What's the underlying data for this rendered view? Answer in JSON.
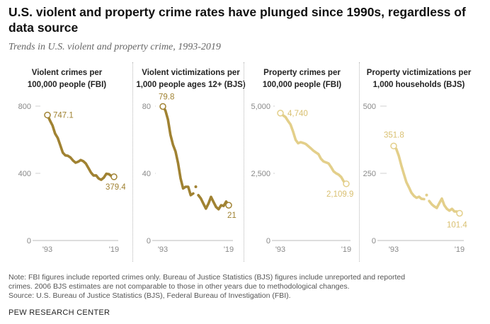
{
  "title": "U.S. violent and property crime rates have plunged since 1990s, regardless of data source",
  "subtitle": "Trends in U.S. violent and property crime, 1993-2019",
  "note": {
    "line1": "Note: FBI figures include reported crimes only. Bureau of Justice Statistics (BJS) figures include unreported and reported",
    "line2": "crimes. 2006 BJS estimates are not comparable to those in other years due to methodological changes.",
    "line3": "Source: U.S. Bureau of Justice Statistics (BJS), Federal Bureau of Investigation (FBI)."
  },
  "credit": "PEW RESEARCH CENTER",
  "colors": {
    "dark": "#a08232",
    "light": "#e3cf8a",
    "light_label": "#d9c071",
    "axis": "#bbbbbb",
    "tick": "#888888"
  },
  "chart_data": [
    {
      "type": "line",
      "title_line1": "Violent crimes per",
      "title_line2": "100,000 people (FBI)",
      "color": "dark",
      "x": [
        1993,
        1994,
        1995,
        1996,
        1997,
        1998,
        1999,
        2000,
        2001,
        2002,
        2003,
        2004,
        2005,
        2006,
        2007,
        2008,
        2009,
        2010,
        2011,
        2012,
        2013,
        2014,
        2015,
        2016,
        2017,
        2018,
        2019
      ],
      "values": [
        747.1,
        713.6,
        684.5,
        636.6,
        611.0,
        567.6,
        523.0,
        506.5,
        504.5,
        494.4,
        475.8,
        463.2,
        469.0,
        479.3,
        471.8,
        458.6,
        431.9,
        404.5,
        387.1,
        387.8,
        369.1,
        361.6,
        373.7,
        397.5,
        394.9,
        383.4,
        379.4
      ],
      "ylim": [
        0,
        800
      ],
      "yticks": [
        0,
        400,
        800
      ],
      "ytick_labels": [
        "0",
        "400",
        "800"
      ],
      "xtick_labels": [
        "'93",
        "'19"
      ],
      "start_label": "747.1",
      "end_label": "379.4"
    },
    {
      "type": "line",
      "title_line1": "Violent victimizations per",
      "title_line2": "1,000 people ages 12+ (BJS)",
      "color": "dark",
      "x": [
        1993,
        1994,
        1995,
        1996,
        1997,
        1998,
        1999,
        2000,
        2001,
        2002,
        2003,
        2004,
        2005,
        2006,
        2007,
        2008,
        2009,
        2010,
        2011,
        2012,
        2013,
        2014,
        2015,
        2016,
        2017,
        2018,
        2019
      ],
      "values": [
        79.8,
        77.4,
        72.0,
        63.0,
        57.0,
        53.0,
        46.0,
        37.0,
        31.0,
        32.0,
        32.0,
        27.0,
        28.0,
        32.0,
        27.0,
        25.0,
        22.0,
        19.0,
        22.0,
        26.0,
        23.0,
        20.0,
        18.6,
        21.0,
        20.6,
        23.2,
        21.0
      ],
      "break_index": 13,
      "ylim": [
        0,
        80
      ],
      "yticks": [
        0,
        40,
        80
      ],
      "ytick_labels": [
        "0",
        "40",
        "80"
      ],
      "xtick_labels": [
        "'93",
        "'19"
      ],
      "start_label": "79.8",
      "end_label": "21"
    },
    {
      "type": "line",
      "title_line1": "Property crimes per",
      "title_line2": "100,000 people (FBI)",
      "color": "light",
      "x": [
        1993,
        1994,
        1995,
        1996,
        1997,
        1998,
        1999,
        2000,
        2001,
        2002,
        2003,
        2004,
        2005,
        2006,
        2007,
        2008,
        2009,
        2010,
        2011,
        2012,
        2013,
        2014,
        2015,
        2016,
        2017,
        2018,
        2019
      ],
      "values": [
        4740,
        4660,
        4591,
        4451,
        4316,
        4052,
        3744,
        3618,
        3658,
        3630,
        3591,
        3514,
        3432,
        3346,
        3276,
        3215,
        3041,
        2946,
        2905,
        2868,
        2733,
        2574,
        2500,
        2451,
        2362,
        2200,
        2109.9
      ],
      "ylim": [
        0,
        5000
      ],
      "yticks": [
        0,
        2500,
        5000
      ],
      "ytick_labels": [
        "0",
        "2,500",
        "5,000"
      ],
      "xtick_labels": [
        "'93",
        "'19"
      ],
      "start_label": "4,740",
      "end_label": "2,109.9"
    },
    {
      "type": "line",
      "title_line1": "Property victimizations per",
      "title_line2": "1,000 households (BJS)",
      "color": "light",
      "x": [
        1993,
        1994,
        1995,
        1996,
        1997,
        1998,
        1999,
        2000,
        2001,
        2002,
        2003,
        2004,
        2005,
        2006,
        2007,
        2008,
        2009,
        2010,
        2011,
        2012,
        2013,
        2014,
        2015,
        2016,
        2017,
        2018,
        2019
      ],
      "values": [
        351.8,
        341.0,
        315.0,
        280.0,
        248.0,
        217.0,
        198.0,
        178.0,
        166.0,
        159.0,
        163.0,
        155.0,
        154.0,
        169.0,
        147.0,
        135.0,
        127.0,
        121.0,
        139.0,
        156.0,
        131.0,
        118.0,
        111.0,
        118.0,
        108.0,
        108.0,
        101.4
      ],
      "break_index": 13,
      "ylim": [
        0,
        500
      ],
      "yticks": [
        0,
        250,
        500
      ],
      "ytick_labels": [
        "0",
        "250",
        "500"
      ],
      "xtick_labels": [
        "'93",
        "'19"
      ],
      "start_label": "351.8",
      "end_label": "101.4"
    }
  ]
}
